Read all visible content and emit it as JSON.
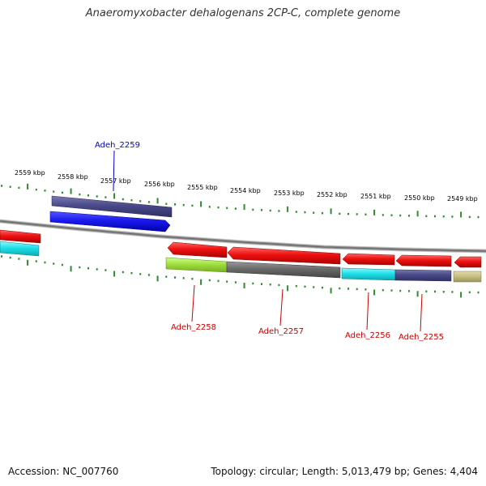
{
  "title": "Anaeromyxobacter dehalogenans 2CP-C, complete genome",
  "footer": {
    "accession": "Accession: NC_007760",
    "summary": "Topology: circular; Length: 5,013,479 bp; Genes: 4,404"
  },
  "scale_labels": [
    "2559 kbp",
    "2558 kbp",
    "2557 kbp",
    "2556 kbp",
    "2555 kbp",
    "2554 kbp",
    "2553 kbp",
    "2552 kbp",
    "2551 kbp",
    "2550 kbp",
    "2549 kbp"
  ],
  "gene_labels": [
    {
      "id": "adeh_2259",
      "text": "Adeh_2259",
      "color": "#0000cc"
    },
    {
      "id": "adeh_2258",
      "text": "Adeh_2258",
      "color": "#cc0000"
    },
    {
      "id": "adeh_2257",
      "text": "Adeh_2257",
      "color": "#cc0000"
    },
    {
      "id": "adeh_2256",
      "text": "Adeh_2256",
      "color": "#cc0000"
    },
    {
      "id": "adeh_2255",
      "text": "Adeh_2255",
      "color": "#cc0000"
    }
  ],
  "colors": {
    "backbone": "#8a8a8a",
    "tick": "#2e8b2e",
    "cds": "#ee1111",
    "forward_gene": "#1a1aee",
    "slate": "#4a4a8a",
    "cyan": "#1ee0e8",
    "lime": "#a0e040",
    "gray": "#6a6a6a",
    "khaki": "#c8c080"
  }
}
